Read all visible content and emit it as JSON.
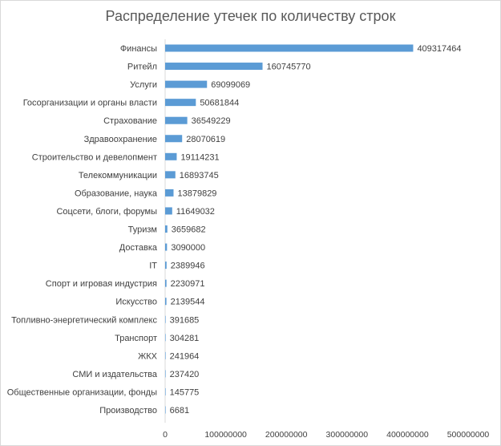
{
  "chart_data": {
    "type": "bar",
    "orientation": "horizontal",
    "title": "Распределение утечек по количеству строк",
    "categories": [
      "Финансы",
      "Ритейл",
      "Услуги",
      "Госорганизации и органы власти",
      "Страхование",
      "Здравоохранение",
      "Строительство и девелопмент",
      "Телекоммуникации",
      "Образование, наука",
      "Соцсети, блоги, форумы",
      "Туризм",
      "Доставка",
      "IT",
      "Спорт и игровая индустрия",
      "Искусство",
      "Топливно-энергетический комплекс",
      "Транспорт",
      "ЖКХ",
      "СМИ и издательства",
      "Общественные организации, фонды",
      "Производство"
    ],
    "values": [
      409317464,
      160745770,
      69099069,
      50681844,
      36549229,
      28070619,
      19114231,
      16893745,
      13879829,
      11649032,
      3659682,
      3090000,
      2389946,
      2230971,
      2139544,
      391685,
      304281,
      241964,
      237420,
      145775,
      6681
    ],
    "value_labels": [
      "409317464",
      "160745770",
      "69099069",
      "50681844",
      "36549229",
      "28070619",
      "19114231",
      "16893745",
      "13879829",
      "11649032",
      "3659682",
      "3090000",
      "2389946",
      "2230971",
      "2139544",
      "391685",
      "304281",
      "241964",
      "237420",
      "145775",
      "6681"
    ],
    "xticks": [
      "0",
      "100000000",
      "200000000",
      "300000000",
      "400000000",
      "500000000"
    ],
    "xlim": [
      0,
      500000000
    ],
    "xlabel": "",
    "ylabel": "",
    "grid": false,
    "legend": "none",
    "bar_color": "#5b9bd5"
  }
}
